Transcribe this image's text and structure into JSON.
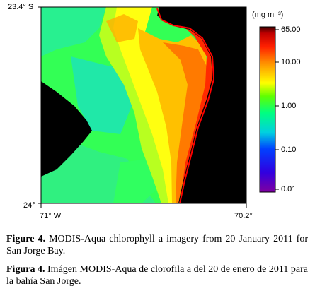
{
  "map": {
    "lat_top": "23.4° S",
    "lat_bottom": "24°",
    "lon_left": "71° W",
    "lon_right": "70.2°"
  },
  "colorbar": {
    "unit": "(mg m⁻³)",
    "ticks": [
      "65.00",
      "10.00",
      "1.00",
      "0.10",
      "0.01"
    ],
    "scale": "log",
    "range": [
      0.01,
      65.0
    ],
    "colors": [
      "#7a00a0",
      "#0000ff",
      "#00e8e8",
      "#00ff66",
      "#ffff00",
      "#ff8800",
      "#ff0000",
      "#3a0000"
    ]
  },
  "chart_data": {
    "type": "heatmap",
    "variable": "chlorophyll a",
    "unit": "(mg m⁻³)",
    "x_extent": [
      "71° W",
      "70.2°"
    ],
    "y_extent": [
      "23.4° S",
      "24°"
    ],
    "land_color": "#000000"
  },
  "caption": {
    "en_label": "Figure 4.",
    "en_text": " MODIS-Aqua chlorophyll a imagery from 20 January 2011 for San Jorge Bay.",
    "es_label": "Figura 4.",
    "es_text": " Imágen MODIS-Aqua de clorofila a del 20 de enero de 2011 para la bahía San Jorge."
  }
}
